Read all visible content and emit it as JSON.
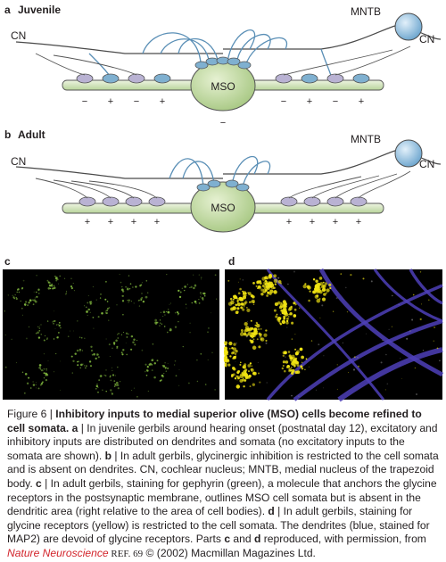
{
  "panels": {
    "a": {
      "letter": "a",
      "title": "Juvenile"
    },
    "b": {
      "letter": "b",
      "title": "Adult"
    },
    "c": {
      "letter": "c"
    },
    "d": {
      "letter": "d"
    }
  },
  "labels": {
    "cn": "CN",
    "mntb": "MNTB",
    "mso": "MSO"
  },
  "juvenile_signs": [
    "−",
    "+",
    "−",
    "+",
    "−",
    "−",
    "+",
    "−",
    "+"
  ],
  "adult_signs": [
    "+",
    "+",
    "+",
    "+",
    "+",
    "+",
    "+",
    "+"
  ],
  "colors": {
    "green_cell": "#c9dfa5",
    "blue_synapse": "#7fb0d0",
    "purple_synapse": "#b9b2d3",
    "gephyrin": "#7db33c",
    "glycine": "#f1e413",
    "map2": "#4d40b8"
  },
  "caption": {
    "figure": "Figure 6 | ",
    "title": "Inhibitory inputs to medial superior olive (MSO) cells become refined to cell somata.",
    "a_letter": "a",
    "a_text": " | In juvenile gerbils around hearing onset (postnatal day 12), excitatory and inhibitory inputs are distributed on dendrites and somata (no excitatory inputs to the somata are shown). ",
    "b_letter": "b",
    "b_text": " | In adult gerbils, glycinergic inhibition is restricted to the cell somata and is absent on dendrites. CN, cochlear nucleus; MNTB, medial nucleus of the trapezoid body. ",
    "c_letter": "c",
    "c_text": " | In adult gerbils, staining for gephyrin (green), a molecule that anchors the glycine receptors in the postsynaptic membrane, outlines MSO cell somata but is absent in the dendritic area (right relative to the area of cell bodies). ",
    "d_letter": "d",
    "d_text": " | In adult gerbils, staining for glycine receptors (yellow) is restricted to the cell somata. The dendrites (blue, stained for MAP2) are devoid of glycine receptors. Parts ",
    "parts_c": "c",
    "and": " and ",
    "parts_d": "d",
    "repro": " reproduced, with permission, from ",
    "journal": "Nature Neuroscience",
    "ref": " REF. 69",
    "copyright": " © (2002) Macmillan Magazines Ltd."
  }
}
